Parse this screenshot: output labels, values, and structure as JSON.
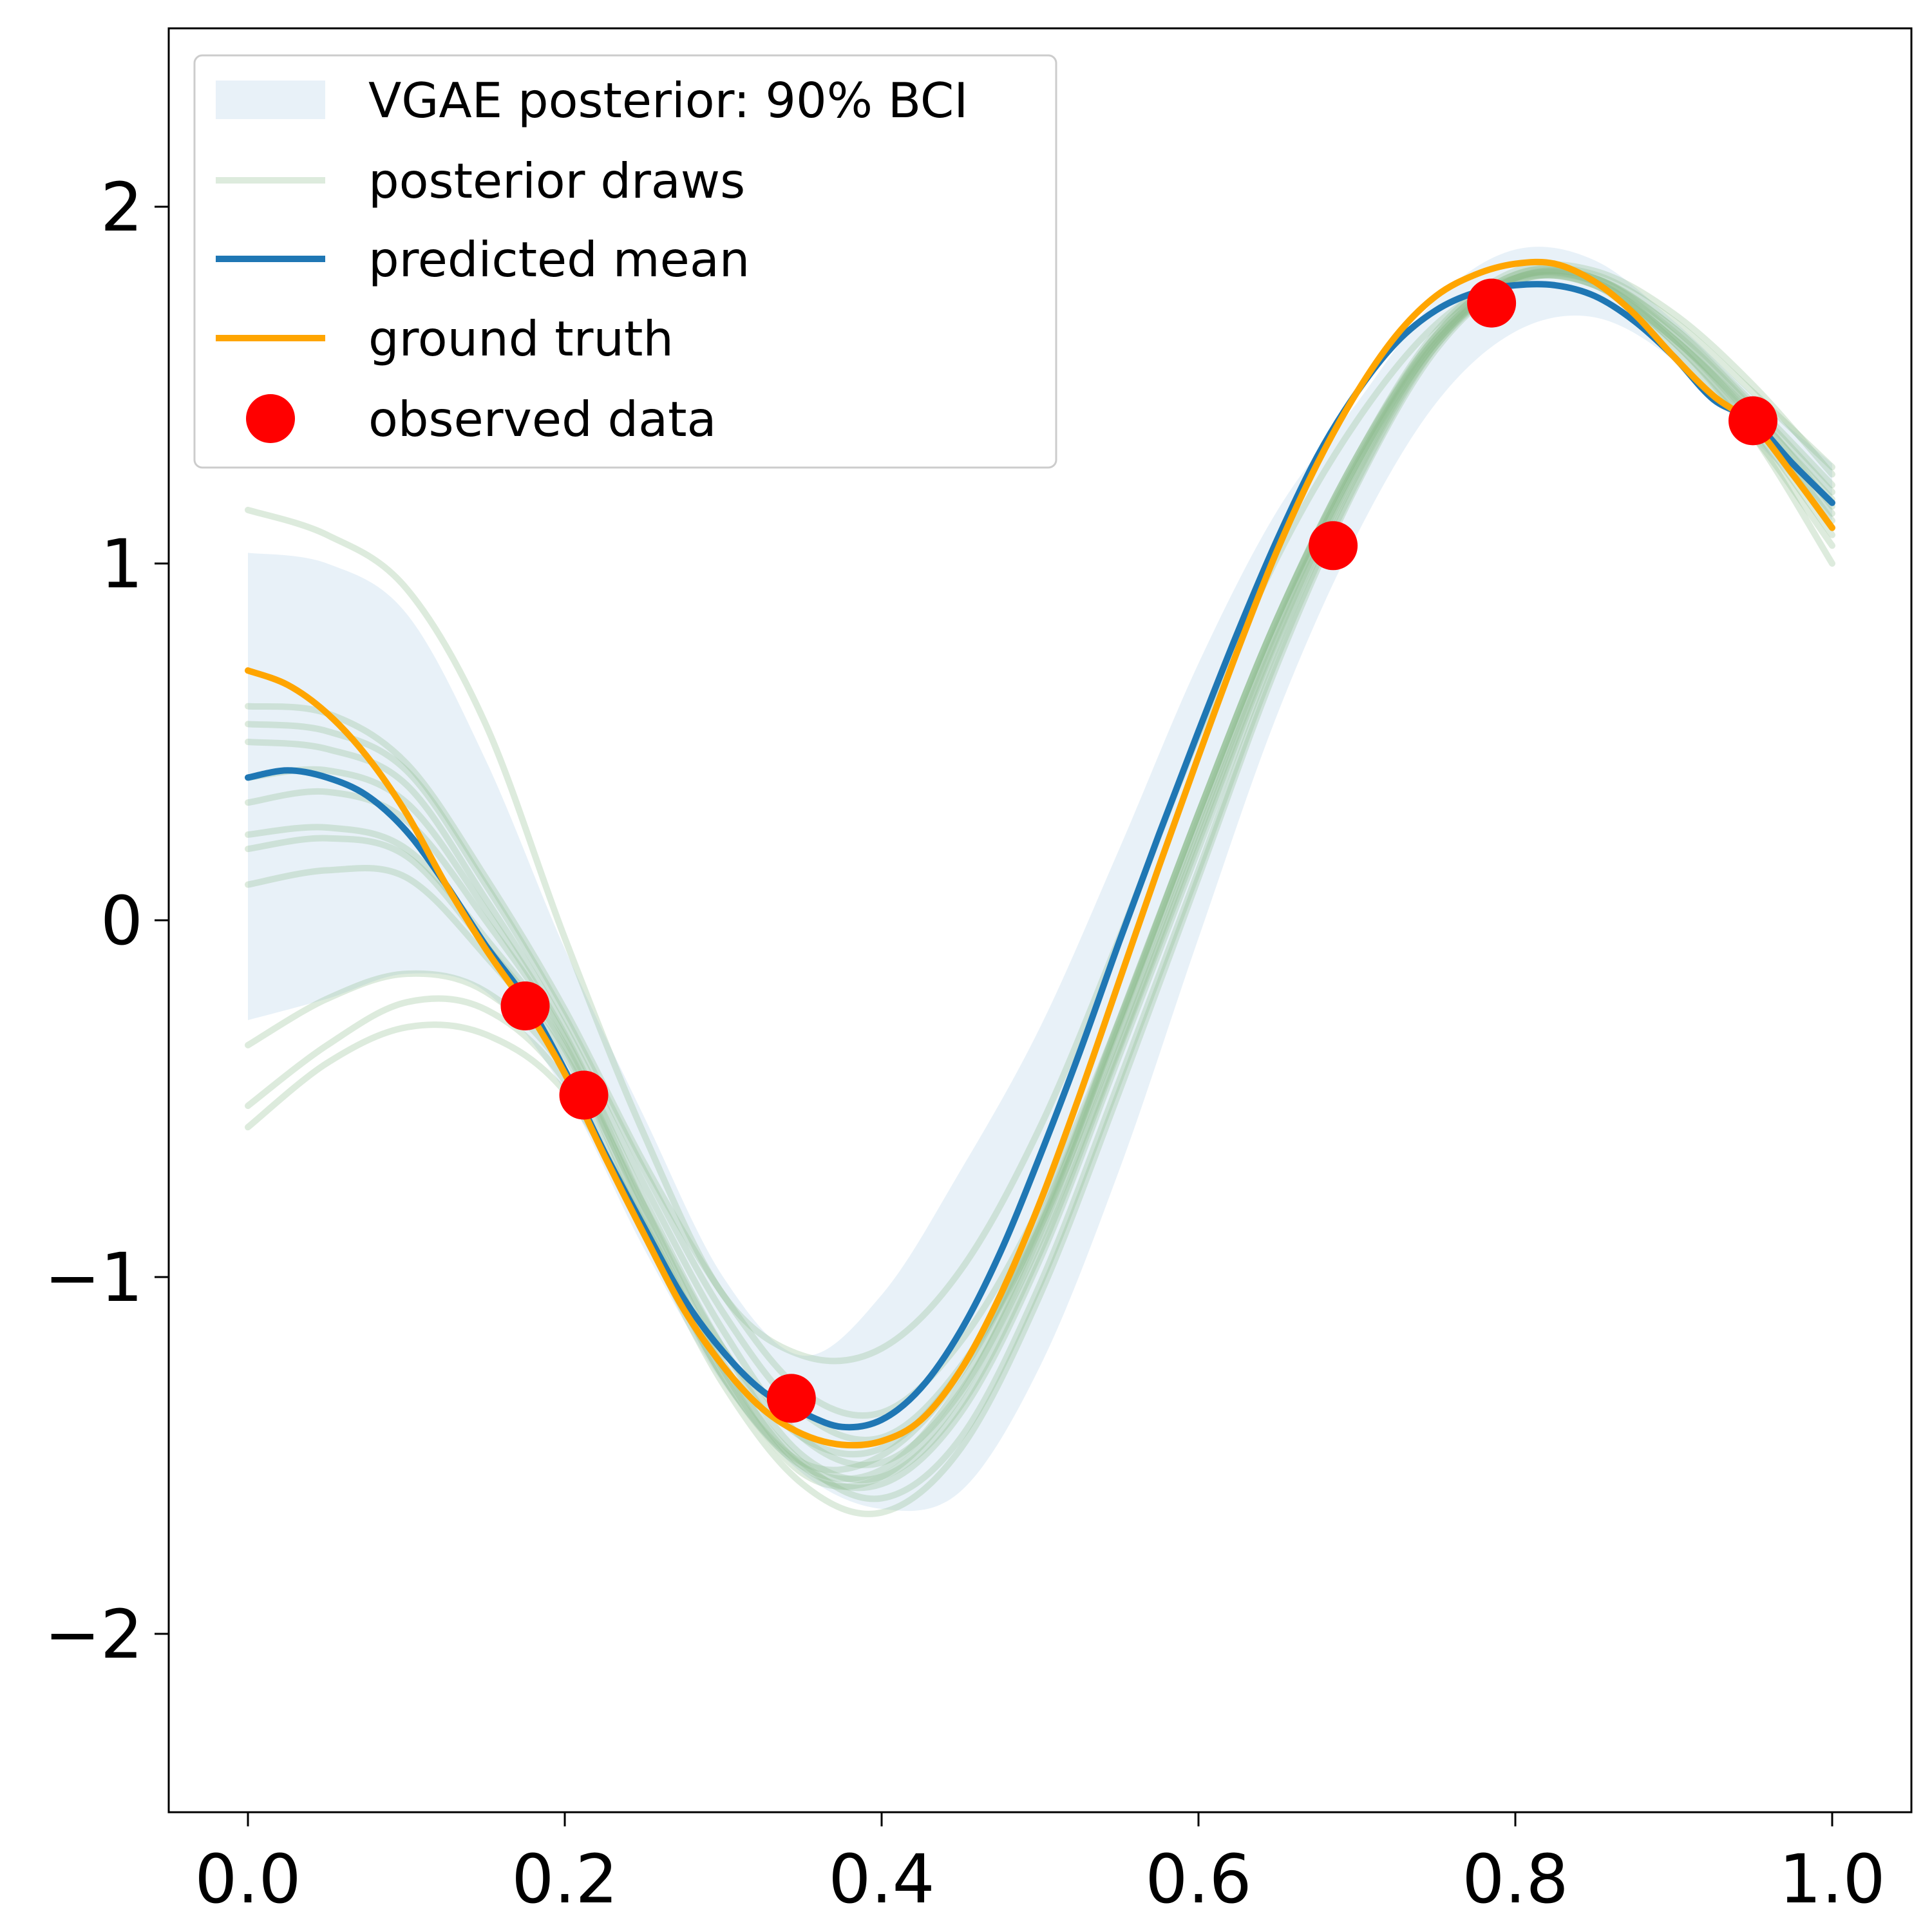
{
  "chart_data": {
    "type": "line",
    "title": "",
    "xlabel": "",
    "ylabel": "",
    "xlim": [
      -0.05,
      1.05
    ],
    "ylim": [
      -2.5,
      2.5
    ],
    "x_ticks": [
      {
        "value": 0.0,
        "label": "0.0"
      },
      {
        "value": 0.2,
        "label": "0.2"
      },
      {
        "value": 0.4,
        "label": "0.4"
      },
      {
        "value": 0.6,
        "label": "0.6"
      },
      {
        "value": 0.8,
        "label": "0.8"
      },
      {
        "value": 1.0,
        "label": "1.0"
      }
    ],
    "y_ticks": [
      {
        "value": -2,
        "label": "−2"
      },
      {
        "value": -1,
        "label": "−1"
      },
      {
        "value": 0,
        "label": "0"
      },
      {
        "value": 1,
        "label": "1"
      },
      {
        "value": 2,
        "label": "2"
      }
    ],
    "grid": false,
    "legend_position": "top-left",
    "legend": [
      {
        "label": "VGAE posterior: 90% BCI",
        "kind": "band",
        "color": "#dce9f5"
      },
      {
        "label": "posterior draws",
        "kind": "line",
        "color": "#8fbc8f"
      },
      {
        "label": "predicted mean",
        "kind": "line",
        "color": "#1f77b4"
      },
      {
        "label": "ground truth",
        "kind": "line",
        "color": "#ffa500"
      },
      {
        "label": "observed data",
        "kind": "marker",
        "color": "#ff0000"
      }
    ],
    "band": {
      "name": "VGAE posterior: 90% BCI",
      "color": "#dce9f5",
      "x": [
        0.0,
        0.05,
        0.1,
        0.15,
        0.2,
        0.25,
        0.3,
        0.35,
        0.4,
        0.45,
        0.5,
        0.55,
        0.6,
        0.65,
        0.7,
        0.75,
        0.8,
        0.85,
        0.9,
        0.95,
        1.0
      ],
      "lower": [
        -0.28,
        -0.22,
        -0.15,
        -0.2,
        -0.48,
        -0.92,
        -1.3,
        -1.55,
        -1.65,
        -1.6,
        -1.25,
        -0.7,
        -0.05,
        0.58,
        1.08,
        1.45,
        1.65,
        1.69,
        1.57,
        1.35,
        1.12
      ],
      "upper": [
        1.03,
        1.0,
        0.86,
        0.45,
        -0.08,
        -0.55,
        -1.0,
        -1.22,
        -1.05,
        -0.7,
        -0.3,
        0.2,
        0.72,
        1.15,
        1.45,
        1.74,
        1.88,
        1.85,
        1.68,
        1.47,
        1.28
      ]
    },
    "draws": {
      "name": "posterior draws",
      "color": "#8fbc8f",
      "x": [
        0.0,
        0.05,
        0.1,
        0.15,
        0.2,
        0.25,
        0.3,
        0.35,
        0.4,
        0.45,
        0.5,
        0.55,
        0.6,
        0.65,
        0.7,
        0.75,
        0.8,
        0.85,
        0.9,
        0.95,
        1.0
      ],
      "series": [
        [
          1.15,
          1.08,
          0.93,
          0.55,
          -0.05,
          -0.6,
          -1.05,
          -1.22,
          -1.2,
          -0.98,
          -0.58,
          -0.05,
          0.52,
          1.02,
          1.4,
          1.67,
          1.8,
          1.78,
          1.63,
          1.4,
          1.14
        ],
        [
          0.6,
          0.58,
          0.44,
          0.12,
          -0.25,
          -0.68,
          -1.05,
          -1.32,
          -1.38,
          -1.18,
          -0.8,
          -0.28,
          0.3,
          0.85,
          1.3,
          1.63,
          1.8,
          1.8,
          1.65,
          1.43,
          1.16
        ],
        [
          0.55,
          0.53,
          0.42,
          0.1,
          -0.27,
          -0.7,
          -1.1,
          -1.38,
          -1.45,
          -1.25,
          -0.86,
          -0.32,
          0.26,
          0.82,
          1.28,
          1.62,
          1.79,
          1.79,
          1.63,
          1.41,
          1.12
        ],
        [
          0.5,
          0.48,
          0.38,
          0.06,
          -0.3,
          -0.74,
          -1.15,
          -1.45,
          -1.52,
          -1.32,
          -0.9,
          -0.35,
          0.24,
          0.8,
          1.27,
          1.62,
          1.8,
          1.8,
          1.64,
          1.4,
          1.1
        ],
        [
          0.4,
          0.42,
          0.33,
          0.03,
          -0.32,
          -0.78,
          -1.2,
          -1.5,
          -1.56,
          -1.36,
          -0.93,
          -0.36,
          0.22,
          0.79,
          1.26,
          1.62,
          1.8,
          1.79,
          1.62,
          1.38,
          1.08
        ],
        [
          0.33,
          0.36,
          0.28,
          0.0,
          -0.33,
          -0.8,
          -1.24,
          -1.53,
          -1.58,
          -1.38,
          -0.95,
          -0.38,
          0.2,
          0.77,
          1.25,
          1.61,
          1.79,
          1.78,
          1.6,
          1.36,
          1.05
        ],
        [
          0.24,
          0.26,
          0.2,
          -0.05,
          -0.35,
          -0.82,
          -1.26,
          -1.55,
          -1.56,
          -1.33,
          -0.88,
          -0.3,
          0.28,
          0.83,
          1.28,
          1.63,
          1.8,
          1.79,
          1.63,
          1.42,
          1.18
        ],
        [
          0.2,
          0.23,
          0.18,
          -0.07,
          -0.36,
          -0.84,
          -1.28,
          -1.53,
          -1.54,
          -1.3,
          -0.86,
          -0.28,
          0.3,
          0.85,
          1.29,
          1.64,
          1.81,
          1.8,
          1.66,
          1.45,
          1.22
        ],
        [
          0.1,
          0.14,
          0.12,
          -0.1,
          -0.38,
          -0.8,
          -1.2,
          -1.45,
          -1.48,
          -1.26,
          -0.84,
          -0.28,
          0.3,
          0.85,
          1.3,
          1.64,
          1.81,
          1.81,
          1.68,
          1.48,
          1.27
        ],
        [
          -0.35,
          -0.22,
          -0.15,
          -0.2,
          -0.42,
          -0.86,
          -1.28,
          -1.52,
          -1.5,
          -1.27,
          -0.85,
          -0.29,
          0.3,
          0.85,
          1.3,
          1.65,
          1.82,
          1.82,
          1.7,
          1.5,
          1.25
        ],
        [
          -0.52,
          -0.35,
          -0.23,
          -0.25,
          -0.45,
          -0.88,
          -1.3,
          -1.58,
          -1.66,
          -1.48,
          -1.05,
          -0.48,
          0.12,
          0.72,
          1.22,
          1.6,
          1.79,
          1.78,
          1.62,
          1.36,
          1.0
        ],
        [
          -0.58,
          -0.4,
          -0.3,
          -0.32,
          -0.48,
          -0.85,
          -1.25,
          -1.52,
          -1.62,
          -1.45,
          -1.02,
          -0.45,
          0.14,
          0.74,
          1.23,
          1.61,
          1.8,
          1.8,
          1.66,
          1.44,
          1.2
        ]
      ]
    },
    "series": [
      {
        "name": "predicted mean",
        "color": "#1f77b4",
        "x": [
          0.0,
          0.025,
          0.05,
          0.075,
          0.1,
          0.125,
          0.15,
          0.175,
          0.2,
          0.225,
          0.25,
          0.275,
          0.3,
          0.325,
          0.35,
          0.375,
          0.4,
          0.425,
          0.45,
          0.475,
          0.5,
          0.525,
          0.55,
          0.575,
          0.6,
          0.625,
          0.65,
          0.675,
          0.7,
          0.725,
          0.75,
          0.775,
          0.8,
          0.825,
          0.85,
          0.875,
          0.9,
          0.925,
          0.95,
          0.975,
          1.0
        ],
        "values": [
          0.4,
          0.42,
          0.4,
          0.35,
          0.25,
          0.1,
          -0.07,
          -0.22,
          -0.42,
          -0.65,
          -0.86,
          -1.06,
          -1.21,
          -1.32,
          -1.38,
          -1.42,
          -1.4,
          -1.31,
          -1.15,
          -0.93,
          -0.66,
          -0.37,
          -0.06,
          0.24,
          0.53,
          0.81,
          1.07,
          1.3,
          1.48,
          1.62,
          1.71,
          1.76,
          1.78,
          1.78,
          1.75,
          1.68,
          1.58,
          1.46,
          1.4,
          1.28,
          1.17
        ]
      },
      {
        "name": "ground truth",
        "color": "#ffa500",
        "x": [
          0.0,
          0.025,
          0.05,
          0.075,
          0.1,
          0.125,
          0.15,
          0.175,
          0.2,
          0.225,
          0.25,
          0.275,
          0.3,
          0.325,
          0.35,
          0.375,
          0.4,
          0.425,
          0.45,
          0.475,
          0.5,
          0.525,
          0.55,
          0.575,
          0.6,
          0.625,
          0.65,
          0.675,
          0.7,
          0.725,
          0.75,
          0.775,
          0.8,
          0.825,
          0.85,
          0.875,
          0.9,
          0.925,
          0.95,
          0.975,
          1.0
        ],
        "values": [
          0.7,
          0.66,
          0.58,
          0.46,
          0.3,
          0.1,
          -0.08,
          -0.24,
          -0.43,
          -0.66,
          -0.88,
          -1.09,
          -1.25,
          -1.37,
          -1.44,
          -1.47,
          -1.46,
          -1.4,
          -1.26,
          -1.05,
          -0.79,
          -0.49,
          -0.17,
          0.15,
          0.46,
          0.76,
          1.04,
          1.28,
          1.48,
          1.64,
          1.75,
          1.81,
          1.84,
          1.84,
          1.79,
          1.7,
          1.58,
          1.47,
          1.39,
          1.25,
          1.1
        ]
      }
    ],
    "observed": {
      "name": "observed data",
      "color": "#ff0000",
      "x": [
        0.175,
        0.212,
        0.343,
        0.685,
        0.785,
        0.95
      ],
      "y": [
        -0.24,
        -0.49,
        -1.34,
        1.05,
        1.73,
        1.4
      ]
    }
  }
}
